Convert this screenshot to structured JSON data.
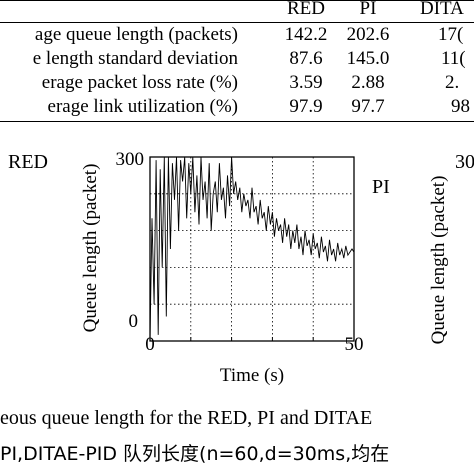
{
  "table": {
    "columns": [
      "RED",
      "PI",
      "DITA"
    ],
    "rows": [
      {
        "label": "age queue length (packets)",
        "values": [
          "142.2",
          "202.6",
          "17("
        ]
      },
      {
        "label": "e length standard deviation",
        "values": [
          "87.6",
          "145.0",
          "11("
        ]
      },
      {
        "label": "erage packet loss rate (%)",
        "values": [
          "3.59",
          "2.88",
          "2."
        ]
      },
      {
        "label": "erage link utilization (%)",
        "values": [
          "97.9",
          "97.7",
          "98"
        ]
      }
    ]
  },
  "figure": {
    "left_label": "RED",
    "center_label": "PI",
    "right_partial_tick": "30",
    "chart_data": {
      "type": "line",
      "title": "",
      "xlabel": "Time (s)",
      "ylabel": "Queue length (packet)",
      "xlim": [
        0,
        50
      ],
      "ylim": [
        0,
        300
      ],
      "x_ticks": [
        "0",
        "50"
      ],
      "y_ticks": [
        "0",
        "300"
      ],
      "grid": true,
      "series": [
        {
          "x": [
            0,
            0.5,
            1,
            1.5,
            2,
            2.5,
            3,
            3.5,
            4,
            4.5,
            5,
            5.5,
            6,
            6.5,
            7,
            7.5,
            8,
            8.5,
            9,
            9.5,
            10,
            10.5,
            11,
            11.5,
            12,
            12.5,
            13,
            13.5,
            14,
            14.5,
            15,
            15.5,
            16,
            16.5,
            17,
            17.5,
            18,
            18.5,
            19,
            19.5,
            20,
            20.5,
            21,
            21.5,
            22,
            22.5,
            23,
            23.5,
            24,
            24.5,
            25,
            25.5,
            26,
            26.5,
            27,
            27.5,
            28,
            28.5,
            29,
            29.5,
            30,
            30.5,
            31,
            31.5,
            32,
            32.5,
            33,
            33.5,
            34,
            34.5,
            35,
            35.5,
            36,
            36.5,
            37,
            37.5,
            38,
            38.5,
            39,
            39.5,
            40,
            40.5,
            41,
            41.5,
            42,
            42.5,
            43,
            43.5,
            44,
            44.5,
            45,
            45.5,
            46,
            46.5,
            47,
            47.5,
            48,
            48.5,
            49,
            49.5,
            50
          ],
          "values": [
            0,
            200,
            60,
            295,
            10,
            280,
            120,
            300,
            40,
            300,
            150,
            290,
            230,
            300,
            180,
            295,
            260,
            300,
            200,
            290,
            240,
            300,
            210,
            270,
            190,
            300,
            230,
            260,
            200,
            290,
            180,
            240,
            260,
            210,
            290,
            230,
            250,
            200,
            270,
            220,
            300,
            240,
            260,
            230,
            250,
            210,
            240,
            220,
            230,
            200,
            250,
            210,
            220,
            190,
            230,
            200,
            210,
            180,
            220,
            190,
            210,
            170,
            200,
            180,
            190,
            160,
            200,
            170,
            190,
            150,
            180,
            160,
            190,
            150,
            170,
            140,
            180,
            155,
            165,
            140,
            175,
            150,
            160,
            135,
            170,
            145,
            155,
            130,
            165,
            140,
            150,
            130,
            160,
            140,
            150,
            135,
            155,
            140,
            145,
            150,
            145
          ]
        }
      ]
    }
  },
  "caption": {
    "line1": "eous queue length for the RED, PI and DITAE",
    "line2": "PI,DITAE-PID 队列长度(n=60,d=30ms,均在"
  }
}
